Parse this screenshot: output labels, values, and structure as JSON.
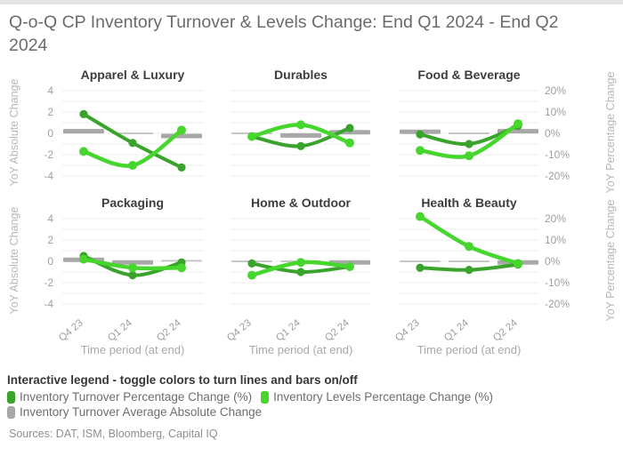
{
  "page": {
    "title": "Q-o-Q CP Inventory Turnover & Levels Change: End Q1 2024 - End Q2 2024"
  },
  "chart_data": {
    "type": "line",
    "layout": "small-multiples 2 rows x 3 columns, lines with point markers plus short gray bar dashes",
    "categories": [
      "Q4 23",
      "Q1 24",
      "Q2 24"
    ],
    "x_axis_label": "Time period (at end)",
    "left_y_axis": {
      "label": "YoY Absolute Change",
      "ticks": [
        4,
        2,
        0,
        -2,
        -4
      ],
      "range": [
        -4.4,
        4.4
      ],
      "grid_step": 1
    },
    "right_y_axis": {
      "label": "YoY Percentage Change",
      "ticks": [
        "20%",
        "10%",
        "0%",
        "-10%",
        "-20%"
      ],
      "tick_values_pct": [
        20,
        10,
        0,
        -10,
        -20
      ],
      "range_pct": [
        -22,
        22
      ]
    },
    "series": [
      {
        "id": "turnover_pct",
        "name": "Inventory Turnover Percentage Change (%)",
        "color": "#3aa32c",
        "style": "line",
        "axis": "right"
      },
      {
        "id": "levels_pct",
        "name": "Inventory Levels Percentage Change (%)",
        "color": "#47d62e",
        "style": "line",
        "axis": "right"
      },
      {
        "id": "avg_abs",
        "name": "Inventory Turnover Average Absolute Change",
        "color": "#a8a8a8",
        "style": "bar-dash",
        "axis": "left"
      }
    ],
    "panels": [
      {
        "title": "Apparel & Luxury",
        "turnover_pct": [
          9,
          -4.5,
          -16
        ],
        "levels_pct": [
          -8.5,
          -15,
          1.5
        ],
        "avg_abs": [
          0.2,
          0,
          -0.25
        ]
      },
      {
        "title": "Durables",
        "turnover_pct": [
          -1.5,
          -6,
          2.5
        ],
        "levels_pct": [
          -1.5,
          4,
          -4.5
        ],
        "avg_abs": [
          0,
          -0.2,
          0.1
        ]
      },
      {
        "title": "Food & Beverage",
        "turnover_pct": [
          -0.5,
          -5,
          3.5
        ],
        "levels_pct": [
          -8,
          -10.5,
          4.5
        ],
        "avg_abs": [
          0.15,
          0,
          0.2
        ]
      },
      {
        "title": "Packaging",
        "turnover_pct": [
          2.5,
          -6.5,
          -0.5
        ],
        "levels_pct": [
          1,
          -3,
          -3
        ],
        "avg_abs": [
          0.15,
          -0.1,
          0.05
        ]
      },
      {
        "title": "Home & Outdoor",
        "turnover_pct": [
          -1,
          -5,
          -2.5
        ],
        "levels_pct": [
          -6.5,
          -0.5,
          -2.5
        ],
        "avg_abs": [
          0,
          0,
          -0.1
        ]
      },
      {
        "title": "Health & Beauty",
        "turnover_pct": [
          -3,
          -4,
          -1.5
        ],
        "levels_pct": [
          21,
          7,
          -1
        ],
        "avg_abs": [
          0,
          0,
          -0.1
        ]
      }
    ],
    "grid_color": "#ececec"
  },
  "legend": {
    "header": "Interactive legend - toggle colors to turn lines and bars on/off"
  },
  "footer": {
    "sources": "Sources: DAT, ISM, Bloomberg, Capital IQ"
  },
  "colors": {
    "turnover_line": "#3aa32c",
    "levels_line": "#47d62e",
    "bar_dash": "#a8a8a8",
    "bar_dash_zero": "#c6c6c6",
    "title_text": "#6b6b6b",
    "panel_title_text": "#3d3d3d",
    "axis_text": "#9e9e9e",
    "top_strip": "#e4e4e4"
  }
}
